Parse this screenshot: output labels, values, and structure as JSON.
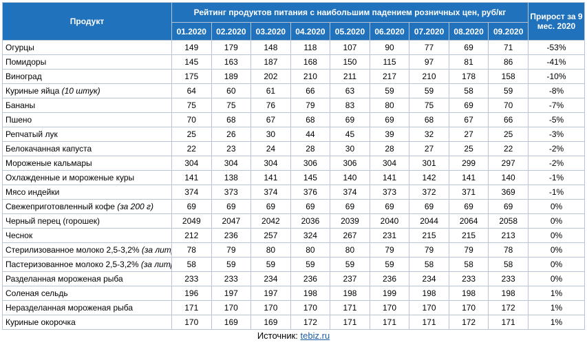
{
  "headers": {
    "product": "Продукт",
    "title": "Рейтинг продуктов питания с наибольшим падением розничных цен, руб/кг",
    "growth": "Прирост за 9 мес. 2020",
    "months": [
      "01.2020",
      "02.2020",
      "03.2020",
      "04.2020",
      "05.2020",
      "06.2020",
      "07.2020",
      "08.2020",
      "09.2020"
    ]
  },
  "rows": [
    {
      "name": "Огурцы",
      "note": "",
      "values": [
        "149",
        "179",
        "148",
        "118",
        "107",
        "90",
        "77",
        "69",
        "71"
      ],
      "growth": "-53%"
    },
    {
      "name": "Помидоры",
      "note": "",
      "values": [
        "145",
        "163",
        "187",
        "168",
        "150",
        "115",
        "97",
        "81",
        "86"
      ],
      "growth": "-41%"
    },
    {
      "name": "Виноград",
      "note": "",
      "values": [
        "175",
        "189",
        "202",
        "210",
        "211",
        "217",
        "210",
        "178",
        "158"
      ],
      "growth": "-10%"
    },
    {
      "name": "Куриные яйца ",
      "note": "(10 штук)",
      "values": [
        "64",
        "60",
        "61",
        "66",
        "63",
        "59",
        "59",
        "58",
        "59"
      ],
      "growth": "-8%"
    },
    {
      "name": "Бананы",
      "note": "",
      "values": [
        "75",
        "75",
        "76",
        "79",
        "83",
        "80",
        "75",
        "69",
        "70"
      ],
      "growth": "-7%"
    },
    {
      "name": "Пшено",
      "note": "",
      "values": [
        "70",
        "68",
        "67",
        "68",
        "69",
        "69",
        "68",
        "67",
        "66"
      ],
      "growth": "-5%"
    },
    {
      "name": "Репчатый лук",
      "note": "",
      "values": [
        "25",
        "26",
        "30",
        "44",
        "45",
        "39",
        "32",
        "27",
        "25"
      ],
      "growth": "-3%"
    },
    {
      "name": "Белокачанная капуста",
      "note": "",
      "values": [
        "22",
        "23",
        "24",
        "28",
        "30",
        "28",
        "27",
        "25",
        "22"
      ],
      "growth": "-2%"
    },
    {
      "name": "Мороженые кальмары",
      "note": "",
      "values": [
        "304",
        "304",
        "304",
        "306",
        "306",
        "304",
        "301",
        "299",
        "297"
      ],
      "growth": "-2%"
    },
    {
      "name": "Охлажденные и мороженые куры",
      "note": "",
      "values": [
        "141",
        "138",
        "141",
        "145",
        "140",
        "141",
        "142",
        "141",
        "140"
      ],
      "growth": "-1%"
    },
    {
      "name": "Мясо индейки",
      "note": "",
      "values": [
        "374",
        "373",
        "374",
        "376",
        "374",
        "373",
        "372",
        "371",
        "369"
      ],
      "growth": "-1%"
    },
    {
      "name": "Свежеприготовленный кофе ",
      "note": "(за 200 г)",
      "values": [
        "69",
        "69",
        "69",
        "69",
        "69",
        "69",
        "69",
        "69",
        "69"
      ],
      "growth": "0%"
    },
    {
      "name": "Черный перец (горошек)",
      "note": "",
      "values": [
        "2049",
        "2047",
        "2042",
        "2036",
        "2039",
        "2040",
        "2044",
        "2064",
        "2058"
      ],
      "growth": "0%"
    },
    {
      "name": "Чеснок",
      "note": "",
      "values": [
        "212",
        "236",
        "257",
        "324",
        "267",
        "231",
        "215",
        "215",
        "213"
      ],
      "growth": "0%"
    },
    {
      "name": "Стерилизованное молоко 2,5-3,2% ",
      "note": "(за литр)",
      "values": [
        "78",
        "79",
        "80",
        "80",
        "80",
        "79",
        "79",
        "79",
        "78"
      ],
      "growth": "0%"
    },
    {
      "name": "Пастеризованное молоко 2,5-3,2% ",
      "note": "(за литр)",
      "values": [
        "58",
        "59",
        "59",
        "59",
        "59",
        "59",
        "58",
        "58",
        "58"
      ],
      "growth": "0%"
    },
    {
      "name": "Разделанная мороженая рыба",
      "note": "",
      "values": [
        "233",
        "233",
        "234",
        "236",
        "237",
        "236",
        "234",
        "233",
        "233"
      ],
      "growth": "0%"
    },
    {
      "name": "Соленая сельдь",
      "note": "",
      "values": [
        "196",
        "197",
        "197",
        "198",
        "198",
        "199",
        "198",
        "198",
        "198"
      ],
      "growth": "1%"
    },
    {
      "name": "Неразделанная мороженая рыба",
      "note": "",
      "values": [
        "171",
        "170",
        "170",
        "170",
        "171",
        "170",
        "170",
        "170",
        "172"
      ],
      "growth": "1%"
    },
    {
      "name": "Куриные окорочка",
      "note": "",
      "values": [
        "170",
        "169",
        "169",
        "172",
        "171",
        "171",
        "171",
        "172",
        "171"
      ],
      "growth": "1%"
    }
  ],
  "source": {
    "label": "Источник: ",
    "link": "tebiz.ru"
  }
}
